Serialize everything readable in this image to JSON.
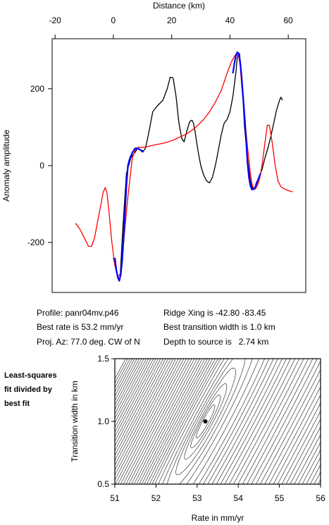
{
  "info": {
    "profile": "Profile: panr04mv.p46",
    "best_rate": "Best rate is 53.2 mm/yr",
    "proj_az": "Proj. Az: 77.0 deg. CW of N",
    "ridge_xing": "Ridge Xing is -42.80 -83.45",
    "best_width": "Best transition width is 1.0 km",
    "depth": "Depth to source is   2.74 km"
  },
  "side_note": [
    "Least-squares",
    "fit divided by",
    "best fit"
  ],
  "chart_data": [
    {
      "type": "line",
      "xlabel": "Distance (km)",
      "ylabel": "Anomaly amplitude",
      "xlim": [
        -21,
        66
      ],
      "ylim": [
        -330,
        330
      ],
      "xticks": [
        -20,
        0,
        20,
        40,
        60
      ],
      "yticks": [
        -200,
        0,
        200
      ],
      "legend": "none",
      "series": [
        {
          "color": "#000000",
          "x": [
            0.0,
            0.8,
            1.5,
            2.3,
            3.2,
            4.5,
            6.0,
            7.5,
            8.3,
            9.0,
            10.0,
            11.0,
            12.0,
            13.5,
            15.0,
            17.0,
            18.5,
            19.5,
            20.5,
            21.5,
            22.5,
            23.5,
            24.3,
            25.2,
            26.2,
            27.0,
            27.5,
            28.0,
            29.0,
            30.0,
            31.0,
            32.0,
            33.0,
            34.0,
            35.0,
            36.0,
            37.0,
            38.0,
            39.0,
            40.0,
            41.0,
            42.0,
            42.5,
            43.0,
            43.3,
            43.8,
            44.5,
            45.0,
            46.0,
            47.0,
            47.5,
            48.0,
            48.5,
            49.0,
            50.0,
            51.0,
            52.0,
            53.0,
            54.0,
            55.0,
            56.0,
            57.0,
            57.5,
            58.0
          ],
          "y": [
            -240,
            -265,
            -290,
            -295,
            -170,
            -20,
            20,
            35,
            45,
            42,
            35,
            45,
            80,
            140,
            155,
            170,
            200,
            230,
            228,
            180,
            110,
            70,
            62,
            90,
            115,
            118,
            110,
            90,
            40,
            0,
            -25,
            -40,
            -45,
            -30,
            0,
            40,
            80,
            110,
            120,
            140,
            180,
            240,
            280,
            293,
            290,
            250,
            170,
            100,
            20,
            -40,
            -55,
            -62,
            -60,
            -45,
            -30,
            -10,
            20,
            45,
            75,
            110,
            145,
            170,
            178,
            170
          ]
        },
        {
          "color": "#ff0000",
          "x": [
            -13.0,
            -11.5,
            -10.5,
            -9.5,
            -8.5,
            -7.5,
            -6.5,
            -5.5,
            -4.5,
            -3.5,
            -2.8,
            -2.2,
            -1.5,
            -0.5,
            0.5,
            1.5,
            2.5,
            3.5,
            5.0,
            6.5,
            7.5,
            8.5,
            9.5,
            11.0,
            13.0,
            15.0,
            17.0,
            19.0,
            21.0,
            23.0,
            25.0,
            27.0,
            29.0,
            31.0,
            33.0,
            35.0,
            37.0,
            39.0,
            40.5,
            42.0,
            43.0,
            43.5,
            44.0,
            45.0,
            46.0,
            47.0,
            47.5,
            48.0,
            48.5,
            49.0,
            50.0,
            51.0,
            52.0,
            52.8,
            53.5,
            54.5,
            55.5,
            56.5,
            57.5,
            58.5,
            60.0,
            61.5
          ],
          "y": [
            -150,
            -165,
            -180,
            -195,
            -210,
            -210,
            -190,
            -150,
            -110,
            -70,
            -57,
            -70,
            -120,
            -200,
            -260,
            -290,
            -280,
            -200,
            -80,
            20,
            40,
            48,
            47,
            48,
            52,
            55,
            58,
            62,
            68,
            75,
            82,
            92,
            105,
            120,
            140,
            165,
            195,
            240,
            270,
            290,
            285,
            260,
            210,
            130,
            50,
            -20,
            -45,
            -58,
            -62,
            -58,
            -40,
            0,
            60,
            105,
            105,
            60,
            0,
            -40,
            -55,
            -60,
            -65,
            -68
          ]
        },
        {
          "color": "#0000ff",
          "x": [
            0.5,
            1.0,
            1.5,
            2.0,
            2.5,
            3.0,
            3.5,
            4.0,
            4.5,
            5.0,
            5.5,
            6.0,
            6.5,
            7.0,
            7.5,
            8.0,
            8.5,
            9.0,
            9.5,
            10.0,
            10.5,
            41.0,
            41.5,
            42.0,
            42.5,
            43.0,
            43.5,
            44.0,
            44.5,
            45.0,
            45.5,
            46.0,
            46.5,
            47.0,
            47.5,
            48.0,
            48.5,
            49.0,
            49.5,
            50.0,
            50.5
          ],
          "y": [
            -240,
            -270,
            -290,
            -300,
            -285,
            -250,
            -190,
            -120,
            -50,
            0,
            15,
            25,
            33,
            40,
            45,
            45,
            44,
            42,
            40,
            38,
            37,
            240,
            265,
            285,
            295,
            292,
            270,
            230,
            180,
            130,
            70,
            10,
            -30,
            -52,
            -62,
            -62,
            -58,
            -50,
            -40,
            -30,
            -20
          ]
        }
      ]
    },
    {
      "type": "heatmap",
      "subtype": "contour",
      "xlabel": "Rate in mm/yr",
      "ylabel": "Transition width in km",
      "xlim": [
        51,
        56
      ],
      "ylim": [
        0.5,
        1.5
      ],
      "xticks": [
        51,
        52,
        53,
        54,
        55,
        56
      ],
      "yticks": [
        0.5,
        1.0,
        1.5
      ],
      "best_fit": {
        "rate": 53.2,
        "width": 1.0
      },
      "contour_levels": [
        1.02,
        1.05,
        1.1,
        1.2,
        1.35,
        1.6,
        2.0,
        2.5,
        3.0,
        3.6,
        4.3,
        5.1,
        6.0,
        7.0,
        8.2,
        9.5,
        11.0,
        12.7,
        14.5,
        16.5,
        18.7,
        21.0,
        23.5,
        26.2,
        29.0,
        32.0,
        35.2,
        38.5,
        42.0,
        45.7,
        49.5,
        53.5,
        57.7,
        62.0,
        66.5,
        71.2,
        76.0,
        81.0,
        86.2,
        91.5,
        97.0,
        102.7,
        108.5,
        114.5,
        120.7,
        127.0
      ]
    }
  ]
}
